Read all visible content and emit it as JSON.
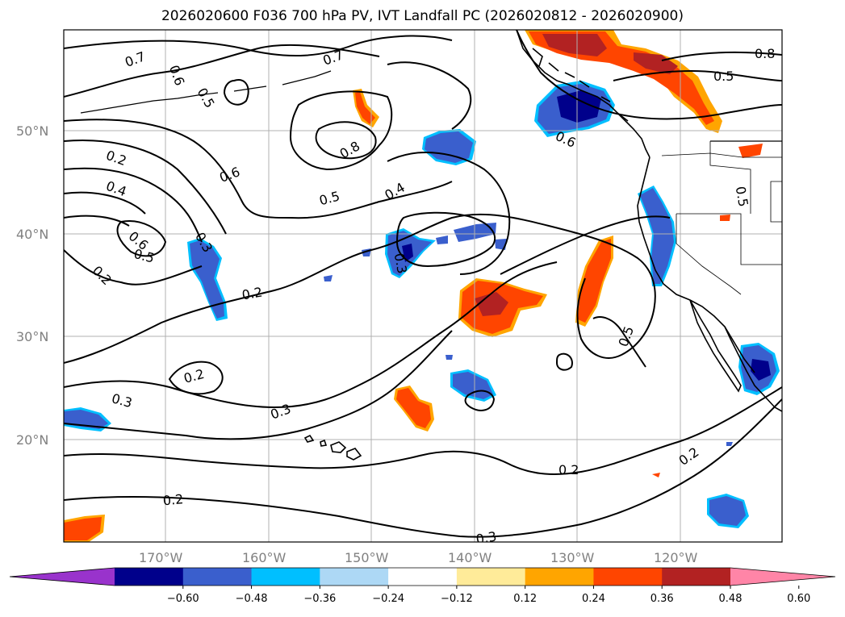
{
  "title": "2026020600 F036 700 hPa PV, IVT Landfall PC (2026020812 - 2026020900)",
  "latitude_labels": [
    "50°N",
    "40°N",
    "30°N",
    "20°N"
  ],
  "longitude_labels": [
    "170°W",
    "160°W",
    "150°W",
    "140°W",
    "130°W",
    "120°W"
  ],
  "colorbar": {
    "tick_labels": [
      "−0.60",
      "−0.48",
      "−0.36",
      "−0.24",
      "−0.12",
      "0.12",
      "0.24",
      "0.36",
      "0.48",
      "0.60"
    ],
    "colors": [
      "#9933cc",
      "#00008b",
      "#3a5fcd",
      "#00bfff",
      "#add8f5",
      "#ffffff",
      "#ffeb99",
      "#ffa500",
      "#ff4500",
      "#b22222",
      "#ff85a7"
    ]
  },
  "contour_labels": [
    "0.7",
    "0.6",
    "0.5",
    "0.7",
    "0.8",
    "0.5",
    "0.6",
    "0.2",
    "0.4",
    "0.6",
    "0.5",
    "0.3",
    "0.2",
    "0.5",
    "0.4",
    "0.3",
    "0.2",
    "0.3",
    "0.8",
    "0.5",
    "0.6",
    "0.5",
    "0.5",
    "0.2",
    "0.3",
    "0.2",
    "0.2",
    "0.3"
  ]
}
